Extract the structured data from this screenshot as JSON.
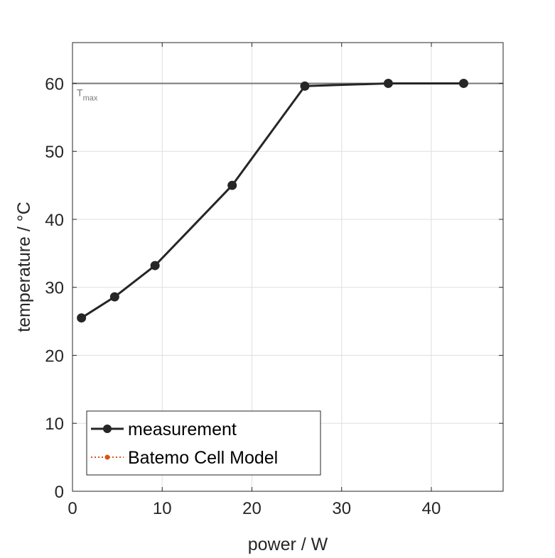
{
  "chart_data": {
    "type": "line",
    "title": "",
    "xlabel": "power / W",
    "ylabel": "temperature / °C",
    "xlim": [
      0,
      48
    ],
    "ylim": [
      0,
      66
    ],
    "xticks": [
      0,
      10,
      20,
      30,
      40
    ],
    "yticks": [
      0,
      10,
      20,
      30,
      40,
      50,
      60
    ],
    "grid": true,
    "legend_position": "bottom-left",
    "series": [
      {
        "name": "measurement",
        "color": "#262626",
        "line_style": "solid",
        "marker": "circle",
        "x": [
          1.0,
          4.7,
          9.2,
          17.8,
          25.9,
          35.2,
          43.6
        ],
        "y": [
          25.5,
          28.6,
          33.2,
          45.0,
          59.6,
          60.0,
          60.0
        ]
      },
      {
        "name": "Batemo Cell Model",
        "color": "#d95319",
        "line_style": "dotted",
        "marker": "circle",
        "x": [],
        "y": []
      }
    ],
    "reference_line": {
      "y": 60,
      "label_main": "T",
      "label_sub": "max",
      "color": "#777777"
    }
  }
}
